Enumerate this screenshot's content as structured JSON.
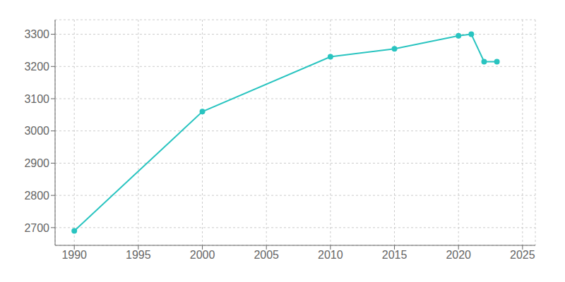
{
  "chart_data": {
    "type": "line",
    "x": [
      1990,
      2000,
      2010,
      2015,
      2020,
      2021,
      2022,
      2023
    ],
    "values": [
      2690,
      3060,
      3230,
      3255,
      3295,
      3300,
      3215,
      3215
    ],
    "color": "#29C4C0",
    "marker": "circle",
    "xlim": [
      1988.5,
      2026
    ],
    "ylim": [
      2645,
      3345
    ],
    "xticks": [
      1990,
      1995,
      2000,
      2005,
      2010,
      2015,
      2020,
      2025
    ],
    "yticks": [
      2700,
      2800,
      2900,
      3000,
      3100,
      3200,
      3300
    ],
    "grid": true
  }
}
